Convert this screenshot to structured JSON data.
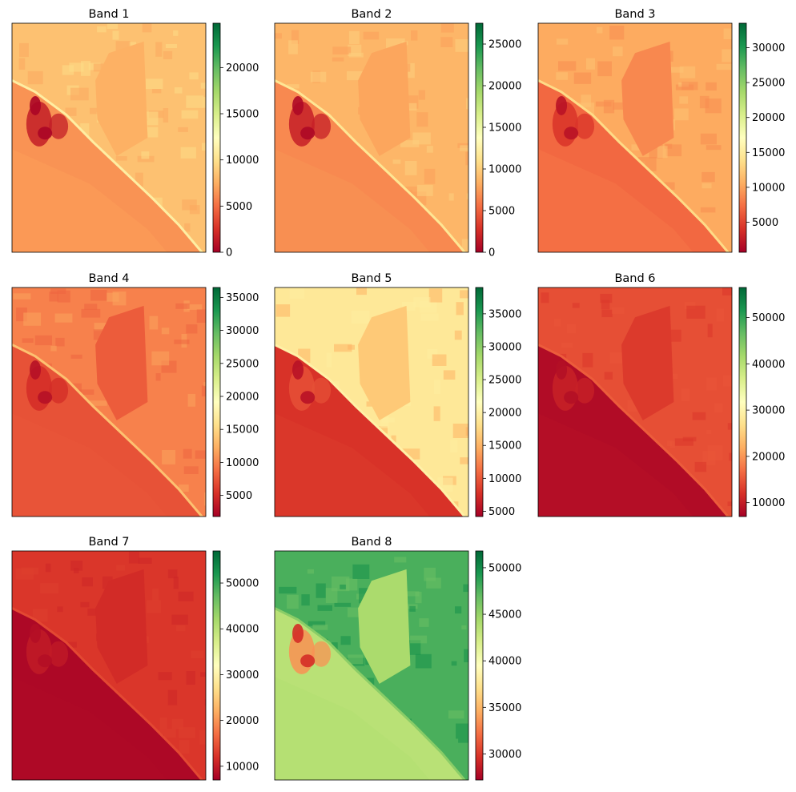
{
  "colormap": {
    "name": "RdYlGn",
    "stops": [
      "#a50026",
      "#d73027",
      "#f46d43",
      "#fdae61",
      "#fee08b",
      "#ffffbf",
      "#d9ef8b",
      "#a6d96a",
      "#66bd63",
      "#1a9850",
      "#006837"
    ]
  },
  "chart_data": [
    {
      "type": "heatmap",
      "title": "Band 1",
      "colorbar": {
        "range": [
          0,
          24800
        ],
        "ticks": [
          0,
          5000,
          10000,
          15000,
          20000
        ]
      },
      "scene": {
        "sea": 6400,
        "sea_far": 6800,
        "land": 8400,
        "land_dark": 7200,
        "inland_block": 7600,
        "coast": 11000,
        "plume": 1500,
        "plume_core": 300
      }
    },
    {
      "type": "heatmap",
      "title": "Band 2",
      "colorbar": {
        "range": [
          0,
          27500
        ],
        "ticks": [
          0,
          5000,
          10000,
          15000,
          20000,
          25000
        ]
      },
      "scene": {
        "sea": 6700,
        "sea_far": 7100,
        "land": 8700,
        "land_dark": 7600,
        "inland_block": 7900,
        "coast": 11500,
        "plume": 1800,
        "plume_core": 500
      }
    },
    {
      "type": "heatmap",
      "title": "Band 3",
      "colorbar": {
        "range": [
          700,
          33500
        ],
        "ticks": [
          5000,
          10000,
          15000,
          20000,
          25000,
          30000
        ]
      },
      "scene": {
        "sea": 7000,
        "sea_far": 7600,
        "land": 10400,
        "land_dark": 8800,
        "inland_block": 8600,
        "coast": 13500,
        "plume": 4200,
        "plume_core": 2000
      }
    },
    {
      "type": "heatmap",
      "title": "Band 4",
      "colorbar": {
        "range": [
          1800,
          36500
        ],
        "ticks": [
          5000,
          10000,
          15000,
          20000,
          25000,
          30000,
          35000
        ]
      },
      "scene": {
        "sea": 7200,
        "sea_far": 7500,
        "land": 9800,
        "land_dark": 8200,
        "inland_block": 7800,
        "coast": 13500,
        "plume": 5000,
        "plume_core": 3000
      }
    },
    {
      "type": "heatmap",
      "title": "Band 5",
      "colorbar": {
        "range": [
          4200,
          39000
        ],
        "ticks": [
          5000,
          10000,
          15000,
          20000,
          25000,
          30000,
          35000
        ]
      },
      "scene": {
        "sea": 7800,
        "sea_far": 8300,
        "land": 19000,
        "land_dark": 15000,
        "inland_block": 16500,
        "coast": 20000,
        "plume": 9500,
        "plume_core": 5500
      }
    },
    {
      "type": "heatmap",
      "title": "Band 6",
      "colorbar": {
        "range": [
          7000,
          56500
        ],
        "ticks": [
          10000,
          20000,
          30000,
          40000,
          50000
        ]
      },
      "scene": {
        "sea": 8200,
        "sea_far": 8600,
        "land": 14500,
        "land_dark": 12500,
        "inland_block": 12800,
        "coast": 15500,
        "plume": 10500,
        "plume_core": 8500
      }
    },
    {
      "type": "heatmap",
      "title": "Band 7",
      "colorbar": {
        "range": [
          7000,
          57000
        ],
        "ticks": [
          10000,
          20000,
          30000,
          40000,
          50000
        ]
      },
      "scene": {
        "sea": 7800,
        "sea_far": 8000,
        "land": 12500,
        "land_dark": 11000,
        "inland_block": 11500,
        "coast": 14000,
        "plume": 9800,
        "plume_core": 8500
      }
    },
    {
      "type": "heatmap",
      "title": "Band 8",
      "colorbar": {
        "range": [
          27200,
          51800
        ],
        "ticks": [
          30000,
          35000,
          40000,
          45000,
          50000
        ]
      },
      "scene": {
        "sea": 43500,
        "sea_far": 43800,
        "land": 47800,
        "land_dark": 49800,
        "inland_block": 44200,
        "coast": 45500,
        "plume": 33500,
        "plume_core": 29500
      }
    }
  ]
}
